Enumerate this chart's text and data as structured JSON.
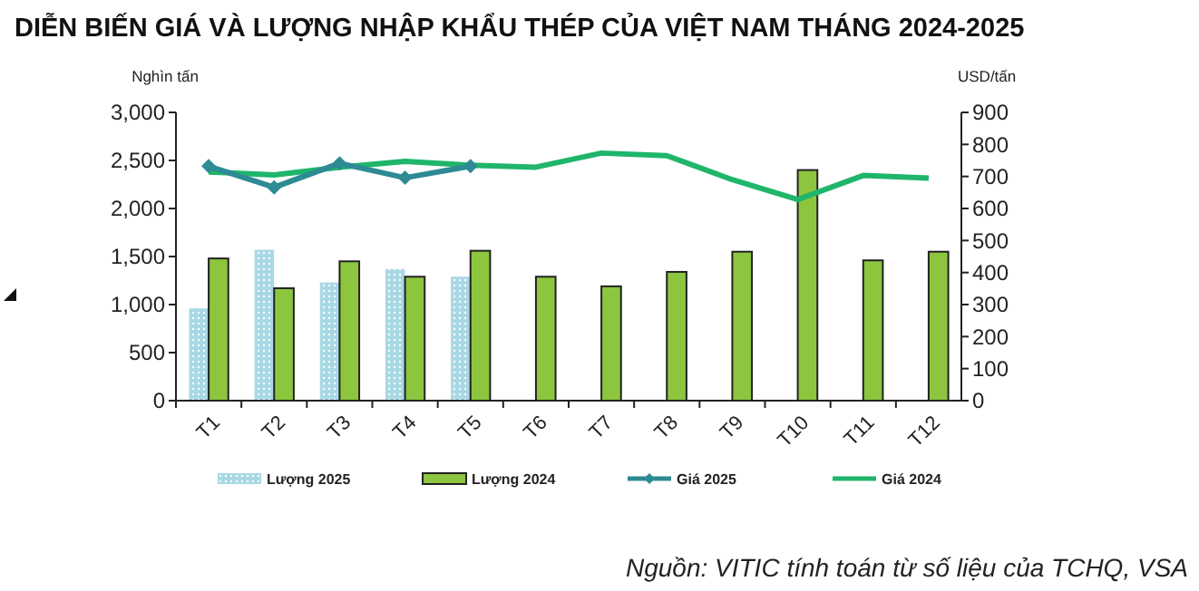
{
  "chart_data": {
    "type": "bar",
    "title": "DIỄN BIẾN GIÁ VÀ LƯỢNG NHẬP KHẨU THÉP CỦA VIỆT NAM THÁNG 2024-2025",
    "ylabel": "Nghìn tấn",
    "y2label": "USD/tấn",
    "categories": [
      "T1",
      "T2",
      "T3",
      "T4",
      "T5",
      "T6",
      "T7",
      "T8",
      "T9",
      "T10",
      "T11",
      "T12"
    ],
    "series": [
      {
        "name": "Lượng 2025",
        "color": "#a8d8e4",
        "values": [
          960,
          1570,
          1230,
          1370,
          1290,
          null,
          null,
          null,
          null,
          null,
          null,
          null
        ]
      },
      {
        "name": "Lượng 2024",
        "color": "#8cc63f",
        "values": [
          1480,
          1170,
          1450,
          1290,
          1560,
          1290,
          1190,
          1340,
          1550,
          2400,
          1460,
          1550
        ]
      },
      {
        "name": "Giá 2025",
        "type": "line",
        "axis": "y2",
        "color": "#2e8a94",
        "marker": "diamond",
        "values": [
          732,
          666,
          741,
          696,
          732,
          null,
          null,
          null,
          null,
          null,
          null,
          null
        ]
      },
      {
        "name": "Giá 2024",
        "type": "line",
        "axis": "y2",
        "color": "#1fb56b",
        "marker": "none",
        "values": [
          714,
          705,
          729,
          747,
          735,
          729,
          773,
          765,
          690,
          628,
          703,
          695
        ]
      }
    ],
    "ylim": [
      0,
      3000
    ],
    "yticks": [
      {
        "value": 0,
        "label": "0"
      },
      {
        "value": 500,
        "label": "500"
      },
      {
        "value": 1000,
        "label": "1,000"
      },
      {
        "value": 1500,
        "label": "1,500"
      },
      {
        "value": 2000,
        "label": "2,000"
      },
      {
        "value": 2500,
        "label": "2,500"
      },
      {
        "value": 3000,
        "label": "3,000"
      }
    ],
    "y2lim": [
      0,
      900
    ],
    "y2ticks": [
      0,
      100,
      200,
      300,
      400,
      500,
      600,
      700,
      800,
      900
    ],
    "legend": "bottom",
    "grid": false,
    "annotations": [
      "Nguồn: VITIC tính toán từ số liệu của TCHQ, VSA"
    ]
  }
}
